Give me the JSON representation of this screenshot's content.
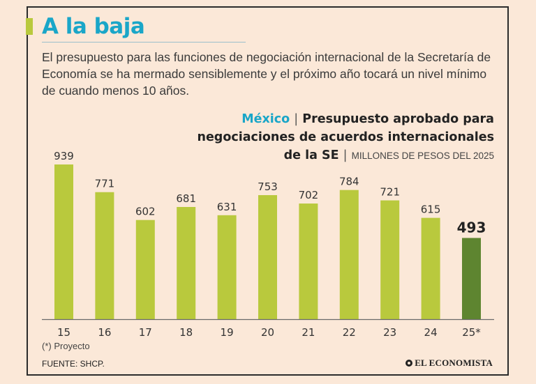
{
  "header": {
    "title": "A la baja",
    "intro": "El presupuesto para las funciones de negociación internacional de la Secretaría de Economía se ha mermado sensiblemente y el próximo año tocará un nivel mínimo de cuando menos 10 años."
  },
  "chart_heading": {
    "country": "México",
    "separator": "|",
    "title_line1": "Presupuesto aprobado para",
    "title_line2": "negociaciones de acuerdos internacionales",
    "title_line3": "de la SE",
    "units": "MILLONES DE PESOS DEL 2025"
  },
  "chart_data": {
    "type": "bar",
    "title": "Presupuesto aprobado para negociaciones de acuerdos internacionales de la SE",
    "ylabel": "MILLONES DE PESOS DEL 2025",
    "xlabel": "",
    "ylim": [
      0,
      939
    ],
    "categories": [
      "15",
      "16",
      "17",
      "18",
      "19",
      "20",
      "21",
      "22",
      "23",
      "24",
      "25*"
    ],
    "values": [
      939,
      771,
      602,
      681,
      631,
      753,
      702,
      784,
      721,
      615,
      493
    ],
    "highlight_index": 10,
    "colors": {
      "bar": "#b9c93d",
      "highlight": "#5e8530",
      "axis": "#6a6a6a"
    }
  },
  "footer": {
    "footnote": "(*) Proyecto",
    "source": "FUENTE: SHCP.",
    "brand": "EL ECONOMISTA"
  }
}
